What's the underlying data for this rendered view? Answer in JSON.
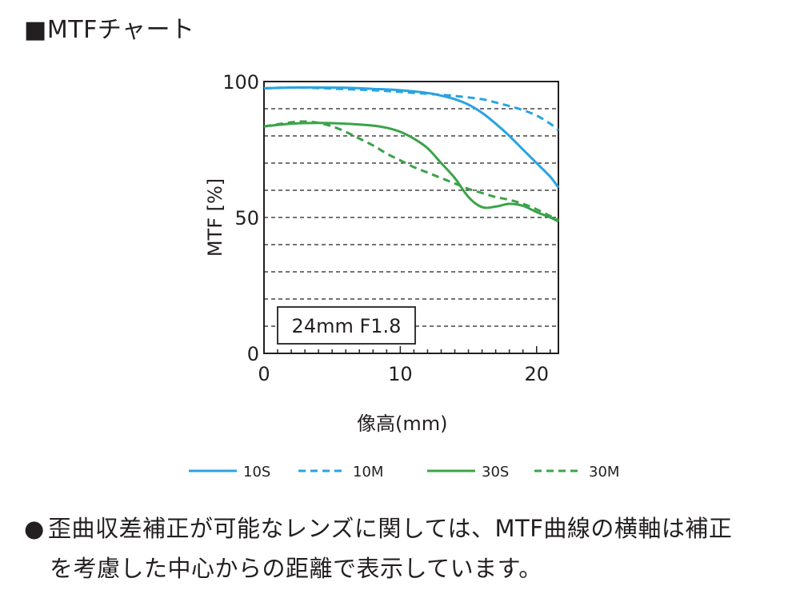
{
  "page": {
    "heading_mark": "■",
    "heading_text": "MTFチャート",
    "note_bullet": "●",
    "note_line1": "歪曲収差補正が可能なレンズに関しては、MTF曲線の横軸は補正",
    "note_line2": "を考慮した中心からの距離で表示しています。"
  },
  "chart_data": {
    "type": "line",
    "title": "",
    "xlabel": "像高(mm)",
    "ylabel": "MTF [%]",
    "xlim": [
      0,
      21.6
    ],
    "ylim": [
      0,
      100
    ],
    "x_ticks": [
      0,
      10,
      20
    ],
    "x_tick_labels": [
      "0",
      "10",
      "20"
    ],
    "y_tick_labels_shown": [
      {
        "value": 0,
        "label": "0"
      },
      {
        "value": 50,
        "label": "50"
      },
      {
        "value": 100,
        "label": "100"
      }
    ],
    "gridlines_y": [
      10,
      20,
      30,
      40,
      50,
      60,
      70,
      80,
      90
    ],
    "annotation": "24mm F1.8",
    "legend_position": "bottom",
    "series": [
      {
        "name": "10S",
        "color": "#29a3e0",
        "dash": "solid",
        "x": [
          0,
          2,
          4,
          6,
          8,
          10,
          12,
          13,
          14,
          15,
          16,
          17,
          18,
          19,
          20,
          21,
          21.6
        ],
        "y": [
          97.5,
          97.8,
          97.8,
          97.7,
          97.3,
          96.8,
          95.8,
          94.8,
          93.5,
          91.5,
          88.5,
          84.5,
          80,
          75,
          70,
          65,
          61
        ]
      },
      {
        "name": "10M",
        "color": "#29a3e0",
        "dash": "dashed",
        "x": [
          0,
          2,
          4,
          6,
          8,
          10,
          12,
          14,
          16,
          17,
          18,
          19,
          20,
          21,
          21.6
        ],
        "y": [
          97.5,
          97.8,
          97.6,
          97.2,
          96.8,
          96.2,
          95.5,
          94.7,
          93.5,
          92.3,
          91,
          89.5,
          87.5,
          84.5,
          82
        ]
      },
      {
        "name": "30S",
        "color": "#3aa349",
        "dash": "solid",
        "x": [
          0,
          2,
          4,
          6,
          8,
          9,
          10,
          11,
          12,
          13,
          14,
          15,
          16,
          17,
          18,
          19,
          20,
          21,
          21.6
        ],
        "y": [
          83.5,
          84.5,
          84.8,
          84.5,
          83.8,
          83,
          81.5,
          79,
          75.5,
          70,
          64.5,
          57.5,
          53.8,
          54,
          55,
          54.3,
          52,
          50,
          48.5
        ]
      },
      {
        "name": "30M",
        "color": "#3aa349",
        "dash": "dashed",
        "x": [
          0,
          2,
          3,
          4,
          5,
          6,
          7,
          8,
          9,
          10,
          11,
          12,
          13,
          14,
          15,
          16,
          17,
          18,
          19,
          20,
          21,
          21.6
        ],
        "y": [
          83.5,
          85,
          85.3,
          84.8,
          83.5,
          81.5,
          79,
          76.5,
          73.5,
          71,
          68.5,
          66.5,
          64.5,
          62.5,
          60.5,
          59,
          57.5,
          56.5,
          55,
          53,
          50.5,
          49
        ]
      }
    ]
  }
}
